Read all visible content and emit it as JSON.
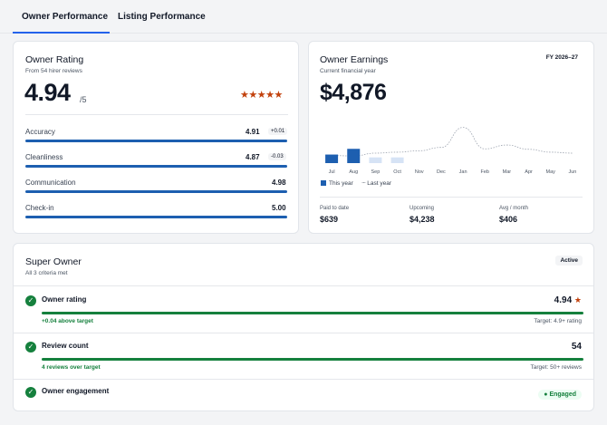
{
  "tabs": {
    "owner": "Owner Performance",
    "listing": "Listing Performance"
  },
  "rating": {
    "title": "Owner Rating",
    "subtitle": "From 54 hirer reviews",
    "value": "4.94",
    "out_of": "/5",
    "stars": "★★★★★",
    "metrics": [
      {
        "label": "Accuracy",
        "value": "4.91",
        "delta": "+0.01"
      },
      {
        "label": "Cleanliness",
        "value": "4.87",
        "delta": "-0.03"
      },
      {
        "label": "Communication",
        "value": "4.98",
        "delta": ""
      },
      {
        "label": "Check-in",
        "value": "5.00",
        "delta": ""
      }
    ]
  },
  "earnings": {
    "title": "Owner Earnings",
    "subtitle": "Current financial year",
    "fy": "FY 2026–27",
    "amount": "$4,876",
    "legend_this": "This year",
    "legend_last": "Last year",
    "paid_label": "Paid to date",
    "paid_value": "$639",
    "upcoming_label": "Upcoming",
    "upcoming_value": "$4,238",
    "avg_label": "Avg / month",
    "avg_value": "$406"
  },
  "chart_data": {
    "type": "bar",
    "categories": [
      "Jul",
      "Aug",
      "Sep",
      "Oct",
      "Nov",
      "Dec",
      "Jan",
      "Feb",
      "Mar",
      "Apr",
      "May",
      "Jun"
    ],
    "series": [
      {
        "name": "This year",
        "values": [
          180,
          300,
          120,
          120,
          null,
          null,
          null,
          null,
          null,
          null,
          null,
          null
        ]
      },
      {
        "name": "Last year",
        "values": [
          160,
          150,
          210,
          230,
          260,
          330,
          750,
          300,
          380,
          290,
          230,
          210
        ]
      }
    ],
    "colors": {
      "this_year": "#1d5fb0",
      "upcoming": "#d6e3f5",
      "last_year": "#9ca3af"
    }
  },
  "super": {
    "title": "Super Owner",
    "subtitle": "All 3 criteria met",
    "badge": "Active",
    "criteria": [
      {
        "label": "Owner rating",
        "value": "4.94",
        "star": "★",
        "note": "+0.04 above target",
        "target": "Target: 4.9+ rating"
      },
      {
        "label": "Review count",
        "value": "54",
        "note": "4 reviews over target",
        "target": "Target: 50+ reviews"
      },
      {
        "label": "Owner engagement",
        "badge": "● Engaged"
      }
    ],
    "check": "✓"
  }
}
